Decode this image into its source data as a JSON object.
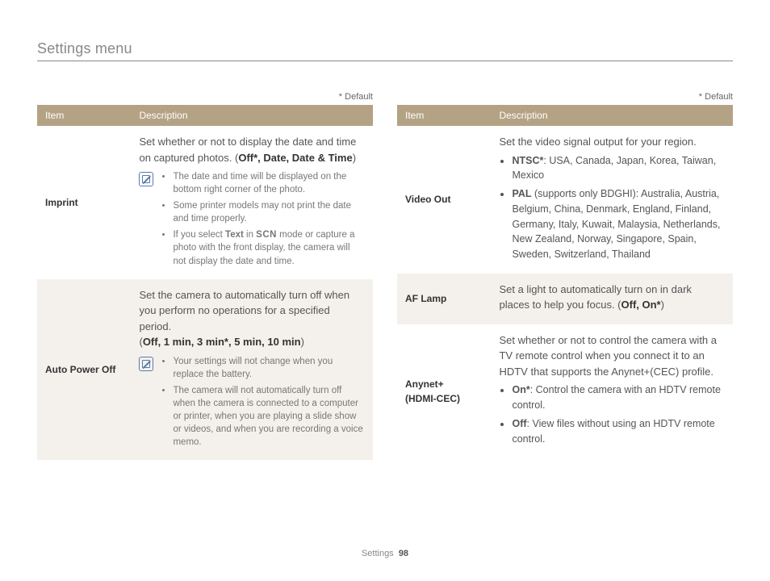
{
  "page": {
    "title": "Settings menu",
    "footer_label": "Settings",
    "footer_page": "98",
    "default_marker": "* Default"
  },
  "headers": {
    "item": "Item",
    "description": "Description"
  },
  "left": [
    {
      "item": "Imprint",
      "alt": false,
      "intro_pre": "Set whether or not to display the date and time on captured photos. (",
      "intro_opts": "Off*, Date, Date & Time",
      "intro_post": ")",
      "has_icon": true,
      "notes": [
        "The date and time will be displayed on the bottom right corner of the photo.",
        "Some printer models may not print the date and time properly.",
        "If you select Text in SCN mode or capture a photo with the front display, the camera will not display the date and time."
      ]
    },
    {
      "item": "Auto Power Off",
      "alt": true,
      "intro_pre": "Set the camera to automatically turn off when you perform no operations for a specified period. (",
      "intro_opts": "Off, 1 min, 3 min*, 5 min, 10 min",
      "intro_post": ")",
      "has_icon": true,
      "notes": [
        "Your settings will not change when you replace the battery.",
        "The camera will not automatically turn off when the camera is connected to a computer or printer, when you are playing a slide show or videos, and when you are recording a voice memo."
      ]
    }
  ],
  "right": [
    {
      "item": "Video Out",
      "alt": false,
      "intro": "Set the video signal output for your region.",
      "opts": [
        {
          "b": "NTSC*",
          "t": ": USA, Canada, Japan, Korea, Taiwan, Mexico"
        },
        {
          "b": "PAL",
          "t": " (supports only BDGHI): Australia, Austria, Belgium, China, Denmark, England, Finland, Germany, Italy, Kuwait, Malaysia, Netherlands, New Zealand, Norway, Singapore, Spain, Sweden, Switzerland, Thailand"
        }
      ]
    },
    {
      "item": "AF Lamp",
      "alt": true,
      "intro_pre": "Set a light to automatically turn on in dark places to help you focus. (",
      "intro_opts": "Off, On*",
      "intro_post": ")"
    },
    {
      "item": "Anynet+ (HDMI-CEC)",
      "alt": false,
      "intro": "Set whether or not to control the camera with a TV remote control when you connect it to an HDTV that supports the Anynet+(CEC) profile.",
      "opts": [
        {
          "b": "On*",
          "t": ": Control the camera with an HDTV remote control."
        },
        {
          "b": "Off",
          "t": ": View files without using an HDTV remote control."
        }
      ]
    }
  ]
}
